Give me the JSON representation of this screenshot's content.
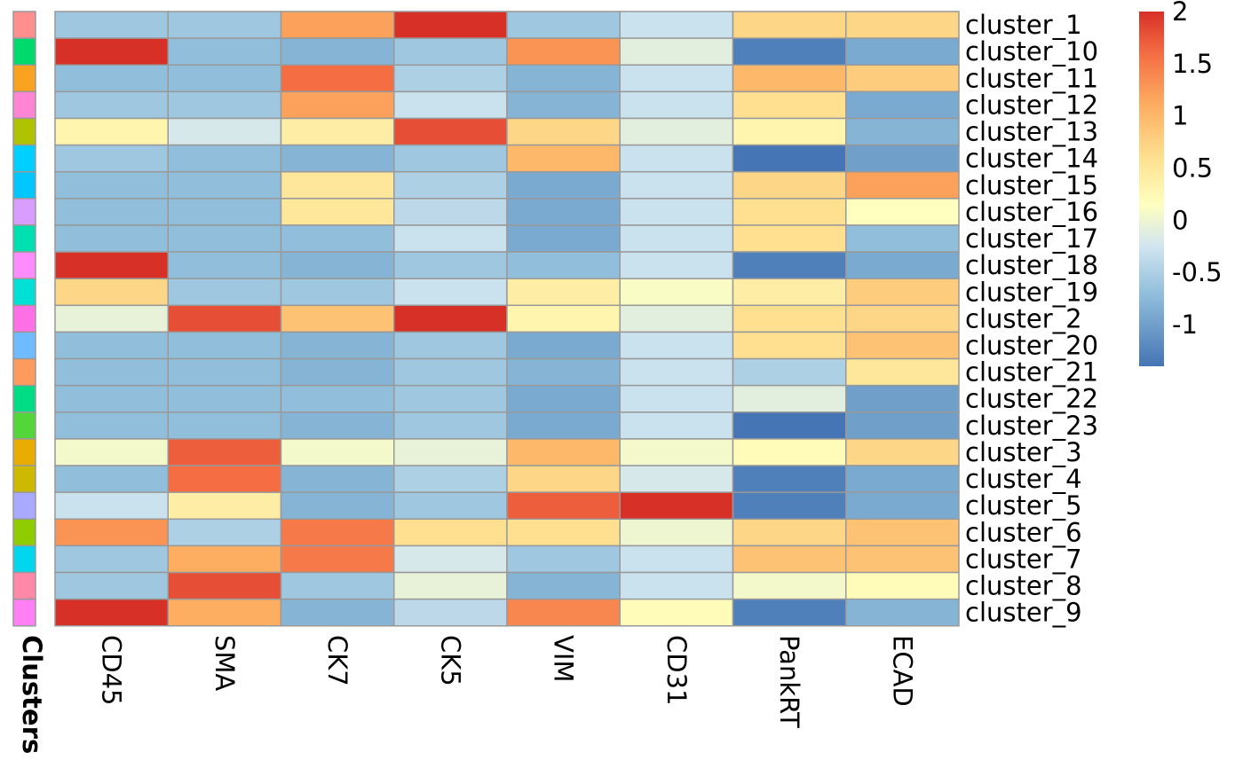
{
  "chart_data": {
    "type": "heatmap",
    "title": "",
    "columns": [
      "CD45",
      "SMA",
      "CK7",
      "CK5",
      "VIM",
      "CD31",
      "PankRT",
      "ECAD"
    ],
    "rows": [
      "cluster_1",
      "cluster_10",
      "cluster_11",
      "cluster_12",
      "cluster_13",
      "cluster_14",
      "cluster_15",
      "cluster_16",
      "cluster_17",
      "cluster_18",
      "cluster_19",
      "cluster_2",
      "cluster_20",
      "cluster_21",
      "cluster_22",
      "cluster_23",
      "cluster_3",
      "cluster_4",
      "cluster_5",
      "cluster_6",
      "cluster_7",
      "cluster_8",
      "cluster_9"
    ],
    "values": [
      [
        -0.6,
        -0.6,
        1.2,
        2.0,
        -0.6,
        -0.3,
        0.7,
        0.7
      ],
      [
        2.0,
        -0.7,
        -0.8,
        -0.6,
        1.3,
        -0.1,
        -1.3,
        -0.9
      ],
      [
        -0.7,
        -0.7,
        1.6,
        -0.5,
        -0.8,
        -0.3,
        1.0,
        0.8
      ],
      [
        -0.6,
        -0.6,
        1.2,
        -0.3,
        -0.8,
        -0.3,
        0.6,
        -0.9
      ],
      [
        0.3,
        -0.2,
        0.4,
        1.8,
        0.7,
        -0.1,
        0.3,
        -0.8
      ],
      [
        -0.6,
        -0.7,
        -0.8,
        -0.6,
        1.0,
        -0.3,
        -1.4,
        -1.0
      ],
      [
        -0.7,
        -0.7,
        0.5,
        -0.5,
        -0.9,
        -0.3,
        0.7,
        1.2
      ],
      [
        -0.7,
        -0.7,
        0.5,
        -0.4,
        -0.9,
        -0.3,
        0.6,
        0.15
      ],
      [
        -0.7,
        -0.7,
        -0.7,
        -0.3,
        -0.9,
        -0.3,
        0.6,
        -0.7
      ],
      [
        2.0,
        -0.7,
        -0.8,
        -0.6,
        -0.7,
        -0.3,
        -1.3,
        -0.9
      ],
      [
        0.7,
        -0.6,
        -0.6,
        -0.3,
        0.4,
        0.1,
        0.4,
        0.8
      ],
      [
        -0.05,
        1.8,
        0.9,
        2.0,
        0.3,
        -0.1,
        0.6,
        0.7
      ],
      [
        -0.7,
        -0.7,
        -0.8,
        -0.6,
        -0.9,
        -0.3,
        0.6,
        0.9
      ],
      [
        -0.7,
        -0.7,
        -0.8,
        -0.6,
        -0.8,
        -0.3,
        -0.5,
        0.5
      ],
      [
        -0.7,
        -0.7,
        -0.7,
        -0.6,
        -0.9,
        -0.3,
        -0.1,
        -1.0
      ],
      [
        -0.7,
        -0.7,
        -0.8,
        -0.6,
        -0.9,
        -0.3,
        -1.4,
        -1.0
      ],
      [
        0.05,
        1.7,
        0.05,
        -0.05,
        1.0,
        0.05,
        0.2,
        0.7
      ],
      [
        -0.7,
        1.6,
        -0.8,
        -0.5,
        0.7,
        -0.2,
        -1.3,
        -0.9
      ],
      [
        -0.3,
        0.4,
        -0.8,
        -0.6,
        1.7,
        2.0,
        -1.3,
        -0.9
      ],
      [
        1.3,
        -0.5,
        1.5,
        0.6,
        0.6,
        0.0,
        0.7,
        0.9
      ],
      [
        -0.6,
        1.1,
        1.5,
        -0.2,
        -0.6,
        -0.3,
        0.9,
        0.9
      ],
      [
        -0.6,
        1.8,
        -0.6,
        -0.05,
        -0.8,
        -0.3,
        0.05,
        0.2
      ],
      [
        2.0,
        1.1,
        -0.8,
        -0.4,
        1.4,
        0.2,
        -1.3,
        -0.8
      ]
    ],
    "color_scale": {
      "min": -1.4,
      "max": 2.0,
      "stops": [
        {
          "value": -1.4,
          "color": "#4575b4"
        },
        {
          "value": -0.7,
          "color": "#91bfdb"
        },
        {
          "value": -0.25,
          "color": "#d1e5f0"
        },
        {
          "value": 0.15,
          "color": "#ffffbf"
        },
        {
          "value": 0.6,
          "color": "#fee090"
        },
        {
          "value": 1.1,
          "color": "#fdae61"
        },
        {
          "value": 1.6,
          "color": "#f46d43"
        },
        {
          "value": 2.0,
          "color": "#d73027"
        }
      ]
    },
    "legend_ticks": [
      "2",
      "1.5",
      "1",
      "0.5",
      "0",
      "-0.5",
      "-1"
    ],
    "legend_placement": "right",
    "annotation": {
      "label": "Clusters",
      "colors": [
        "#ff8f8f",
        "#00d96b",
        "#f9a21f",
        "#ff85d4",
        "#b0c300",
        "#00d0ff",
        "#00c6ff",
        "#d99cff",
        "#00dfb0",
        "#ff8cff",
        "#00e0d6",
        "#ff6fe6",
        "#6ebcff",
        "#ff9a5e",
        "#00dc84",
        "#53d63a",
        "#e8ad00",
        "#cdba00",
        "#a9a9ff",
        "#8fcc00",
        "#00d7ee",
        "#ff87a8",
        "#ff7ff4"
      ]
    },
    "grid_color": "#999999"
  }
}
